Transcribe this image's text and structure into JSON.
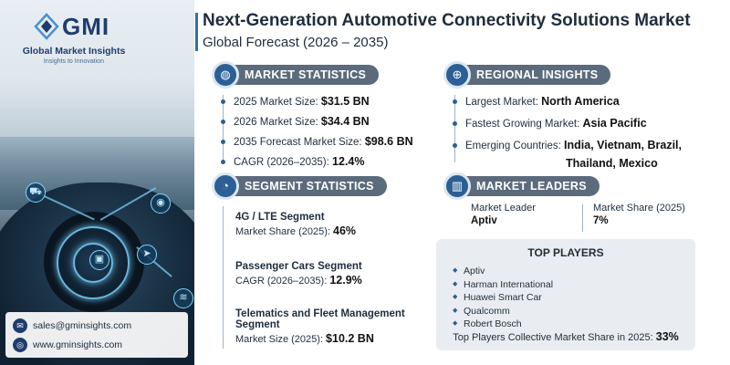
{
  "brand": {
    "logo_text": "GMI",
    "name": "Global Market Insights",
    "tagline": "Insights to Innovation"
  },
  "header": {
    "title": "Next-Generation Automotive Connectivity Solutions Market",
    "subtitle": "Global Forecast (2026 – 2035)"
  },
  "market_statistics": {
    "heading": "MARKET STATISTICS",
    "icon": "globe-chart-icon",
    "items": [
      {
        "label": "2025 Market Size: ",
        "value": "$31.5 BN"
      },
      {
        "label": "2026 Market Size: ",
        "value": "$34.4 BN"
      },
      {
        "label": "2035 Forecast Market Size: ",
        "value": "$98.6 BN"
      },
      {
        "label": "CAGR (2026–2035): ",
        "value": "12.4%"
      }
    ]
  },
  "regional_insights": {
    "heading": "REGIONAL INSIGHTS",
    "icon": "globe-icon",
    "items": [
      {
        "label": "Largest Market: ",
        "value": "North America"
      },
      {
        "label": "Fastest Growing Market: ",
        "value": "Asia Pacific"
      },
      {
        "label": "Emerging Countries: ",
        "value": "India, Vietnam, Brazil,",
        "value_line2": "Thailand, Mexico"
      }
    ]
  },
  "segment_statistics": {
    "heading": "SEGMENT STATISTICS",
    "icon": "segment-pie-icon",
    "items": [
      {
        "title": "4G / LTE Segment",
        "sub_label": "Market Share (2025): ",
        "value": "46%"
      },
      {
        "title": "Passenger Cars Segment",
        "sub_label": "CAGR (2026–2035): ",
        "value": "12.9%"
      },
      {
        "title": "Telematics and Fleet Management",
        "title_line2": "Segment",
        "sub_label": "Market Size (2025): ",
        "value": "$10.2 BN"
      }
    ]
  },
  "market_leaders": {
    "heading": "MARKET LEADERS",
    "icon": "bar-chart-icon",
    "leader_label": "Market Leader",
    "leader_value": "Aptiv",
    "share_label": "Market Share (2025)",
    "share_value": "7%"
  },
  "top_players": {
    "heading": "TOP PLAYERS",
    "players": [
      "Aptiv",
      "Harman International",
      "Huawei Smart Car",
      "Qualcomm",
      "Robert Bosch"
    ],
    "footer_label": "Top Players Collective Market Share in 2025: ",
    "footer_value": "33%"
  },
  "contact": {
    "email": "sales@gminsights.com",
    "website": "www.gminsights.com"
  },
  "colors": {
    "accent": "#2c5f95",
    "pill": "#5b6b7c",
    "brand": "#1f3c6e"
  }
}
